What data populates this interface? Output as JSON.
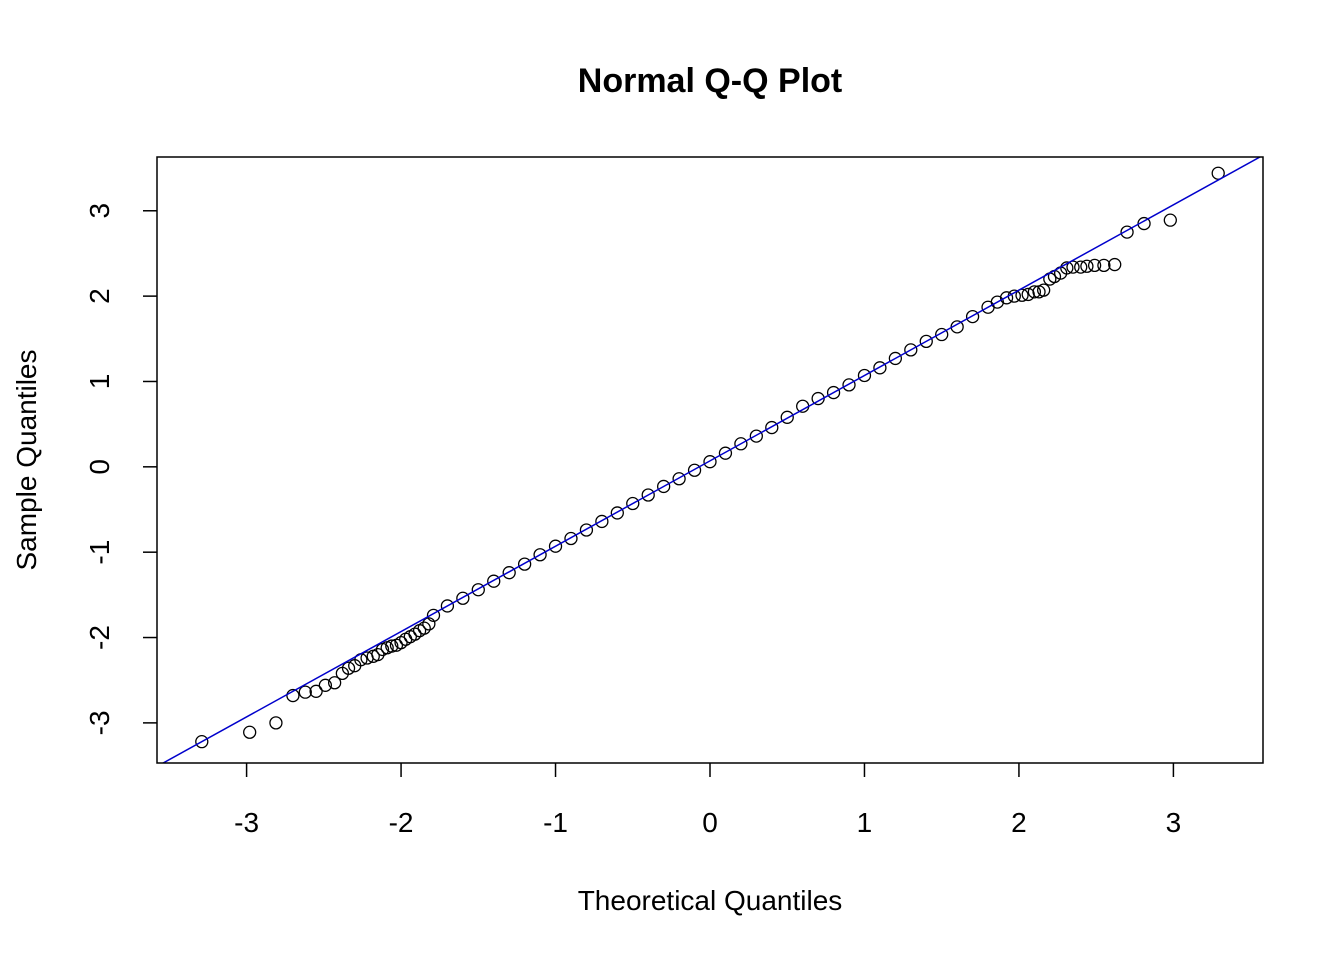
{
  "chart_data": {
    "type": "scatter",
    "title": "Normal Q-Q Plot",
    "xlabel": "Theoretical Quantiles",
    "ylabel": "Sample Quantiles",
    "xlim": [
      -3.58,
      3.58
    ],
    "ylim": [
      -3.47,
      3.63
    ],
    "xticks": [
      "-3",
      "-2",
      "-1",
      "0",
      "1",
      "2",
      "3"
    ],
    "yticks": [
      "-3",
      "-2",
      "-1",
      "0",
      "1",
      "2",
      "3"
    ],
    "grid": false,
    "legend": "none",
    "marker": "open-circle",
    "reference_line": {
      "intercept": 0.07,
      "slope": 1.0,
      "color": "#0000cc"
    },
    "colors": {
      "points": "#000000",
      "line": "#0000cc"
    },
    "points": [
      [
        -3.29,
        -3.22
      ],
      [
        -2.98,
        -3.11
      ],
      [
        -2.81,
        -3.0
      ],
      [
        -2.7,
        -2.68
      ],
      [
        -2.62,
        -2.64
      ],
      [
        -2.55,
        -2.63
      ],
      [
        -2.49,
        -2.56
      ],
      [
        -2.43,
        -2.53
      ],
      [
        -2.38,
        -2.42
      ],
      [
        -2.34,
        -2.36
      ],
      [
        -2.3,
        -2.33
      ],
      [
        -2.26,
        -2.26
      ],
      [
        -2.22,
        -2.24
      ],
      [
        -2.18,
        -2.22
      ],
      [
        -2.15,
        -2.2
      ],
      [
        -2.12,
        -2.14
      ],
      [
        -2.09,
        -2.12
      ],
      [
        -2.06,
        -2.1
      ],
      [
        -2.03,
        -2.09
      ],
      [
        -2.0,
        -2.06
      ],
      [
        -1.97,
        -2.02
      ],
      [
        -1.94,
        -1.99
      ],
      [
        -1.91,
        -1.96
      ],
      [
        -1.88,
        -1.92
      ],
      [
        -1.85,
        -1.89
      ],
      [
        -1.82,
        -1.84
      ],
      [
        -1.79,
        -1.74
      ],
      [
        -1.7,
        -1.63
      ],
      [
        -1.6,
        -1.54
      ],
      [
        -1.5,
        -1.44
      ],
      [
        -1.4,
        -1.34
      ],
      [
        -1.3,
        -1.24
      ],
      [
        -1.2,
        -1.14
      ],
      [
        -1.1,
        -1.03
      ],
      [
        -1.0,
        -0.93
      ],
      [
        -0.9,
        -0.84
      ],
      [
        -0.8,
        -0.74
      ],
      [
        -0.7,
        -0.64
      ],
      [
        -0.6,
        -0.54
      ],
      [
        -0.5,
        -0.43
      ],
      [
        -0.4,
        -0.33
      ],
      [
        -0.3,
        -0.23
      ],
      [
        -0.2,
        -0.14
      ],
      [
        -0.1,
        -0.04
      ],
      [
        0.0,
        0.06
      ],
      [
        0.1,
        0.16
      ],
      [
        0.2,
        0.27
      ],
      [
        0.3,
        0.36
      ],
      [
        0.4,
        0.46
      ],
      [
        0.5,
        0.58
      ],
      [
        0.6,
        0.71
      ],
      [
        0.7,
        0.8
      ],
      [
        0.8,
        0.87
      ],
      [
        0.9,
        0.96
      ],
      [
        1.0,
        1.07
      ],
      [
        1.1,
        1.16
      ],
      [
        1.2,
        1.27
      ],
      [
        1.3,
        1.37
      ],
      [
        1.4,
        1.47
      ],
      [
        1.5,
        1.55
      ],
      [
        1.6,
        1.64
      ],
      [
        1.7,
        1.76
      ],
      [
        1.8,
        1.87
      ],
      [
        1.86,
        1.93
      ],
      [
        1.92,
        1.98
      ],
      [
        1.97,
        2.0
      ],
      [
        2.02,
        2.01
      ],
      [
        2.06,
        2.02
      ],
      [
        2.1,
        2.05
      ],
      [
        2.13,
        2.05
      ],
      [
        2.16,
        2.07
      ],
      [
        2.2,
        2.2
      ],
      [
        2.23,
        2.23
      ],
      [
        2.27,
        2.27
      ],
      [
        2.31,
        2.33
      ],
      [
        2.35,
        2.34
      ],
      [
        2.4,
        2.34
      ],
      [
        2.44,
        2.35
      ],
      [
        2.49,
        2.36
      ],
      [
        2.55,
        2.36
      ],
      [
        2.62,
        2.37
      ],
      [
        2.7,
        2.75
      ],
      [
        2.81,
        2.85
      ],
      [
        2.98,
        2.89
      ],
      [
        3.29,
        3.44
      ]
    ]
  }
}
